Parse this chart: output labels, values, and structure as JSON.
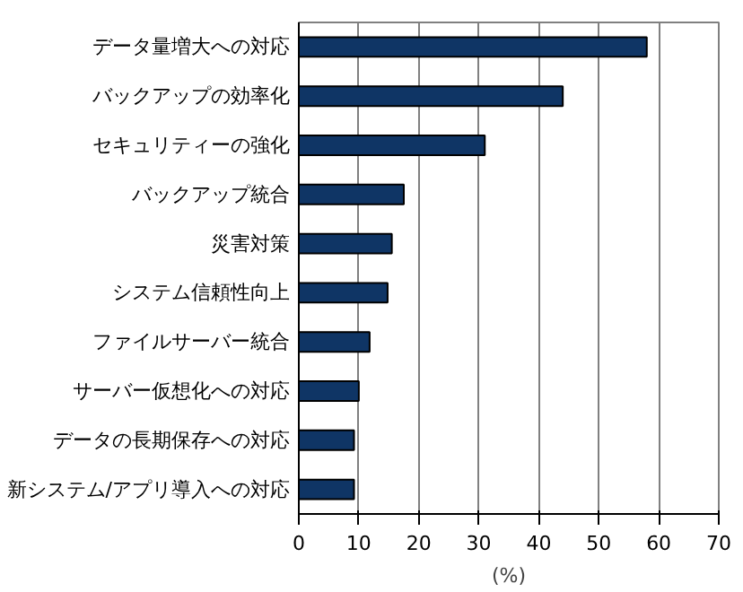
{
  "chart_data": {
    "type": "bar",
    "orientation": "horizontal",
    "xlabel": "(%)",
    "categories": [
      "データ量増大への対応",
      "バックアップの効率化",
      "セキュリティーの強化",
      "バックアップ統合",
      "災害対策",
      "システム信頼性向上",
      "ファイルサーバー統合",
      "サーバー仮想化への対応",
      "データの長期保存への対応",
      "新システム/アプリ導入への対応"
    ],
    "values": [
      58,
      44,
      31,
      17.5,
      15.5,
      14.8,
      11.8,
      10,
      9.2,
      9.2
    ],
    "color": "#0f3565",
    "xlim": [
      0,
      70
    ],
    "xticks": [
      0,
      10,
      20,
      30,
      40,
      50,
      60,
      70
    ],
    "grid": "x"
  }
}
